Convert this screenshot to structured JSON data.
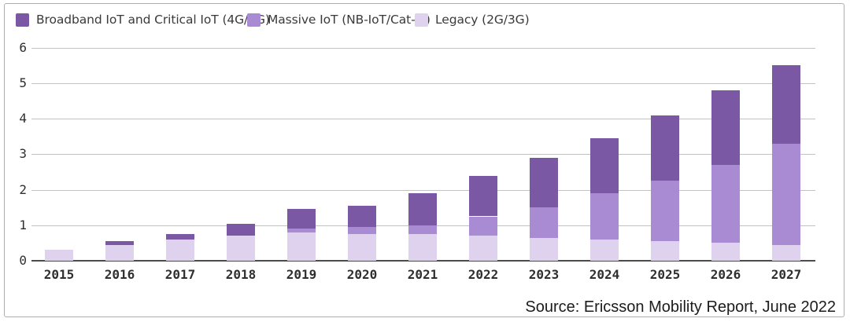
{
  "legend": {
    "items": [
      {
        "label": "Broadband IoT and Critical IoT (4G/5G)",
        "color": "#7a58a4"
      },
      {
        "label": "Massive IoT (NB-IoT/Cat-M)",
        "color": "#a88bd2"
      },
      {
        "label": "Legacy (2G/3G)",
        "color": "#ded2ef"
      }
    ]
  },
  "source": "Source: Ericsson Mobility Report, June 2022",
  "colors": {
    "axis_line": "#4b4b4b",
    "gridline": "#c2c2c2",
    "tick_text": "#2f2f2f",
    "frame_border": "#aeaeae",
    "background": "#ffffff"
  },
  "chart_data": {
    "type": "bar",
    "stacked": true,
    "title": "",
    "xlabel": "",
    "ylabel": "",
    "categories": [
      "2015",
      "2016",
      "2017",
      "2018",
      "2019",
      "2020",
      "2021",
      "2022",
      "2023",
      "2024",
      "2025",
      "2026",
      "2027"
    ],
    "series": [
      {
        "name": "Legacy (2G/3G)",
        "color": "#ded2ef",
        "values": [
          0.3,
          0.45,
          0.6,
          0.7,
          0.8,
          0.75,
          0.75,
          0.7,
          0.65,
          0.6,
          0.55,
          0.5,
          0.45
        ]
      },
      {
        "name": "Massive IoT (NB-IoT/Cat-M)",
        "color": "#a88bd2",
        "values": [
          0.0,
          0.0,
          0.0,
          0.0,
          0.1,
          0.2,
          0.25,
          0.55,
          0.85,
          1.3,
          1.7,
          2.2,
          2.85
        ]
      },
      {
        "name": "Broadband IoT and Critical IoT (4G/5G)",
        "color": "#7a58a4",
        "values": [
          0.0,
          0.1,
          0.15,
          0.35,
          0.55,
          0.6,
          0.9,
          1.15,
          1.4,
          1.55,
          1.85,
          2.1,
          2.2
        ]
      }
    ],
    "totals": [
      0.3,
      0.55,
      0.75,
      1.05,
      1.45,
      1.55,
      1.9,
      2.4,
      2.9,
      3.45,
      4.1,
      4.8,
      5.5
    ],
    "ylim": [
      0,
      6
    ],
    "yticks": [
      0,
      1,
      2,
      3,
      4,
      5,
      6
    ],
    "grid": true,
    "legend_position": "top-left"
  }
}
